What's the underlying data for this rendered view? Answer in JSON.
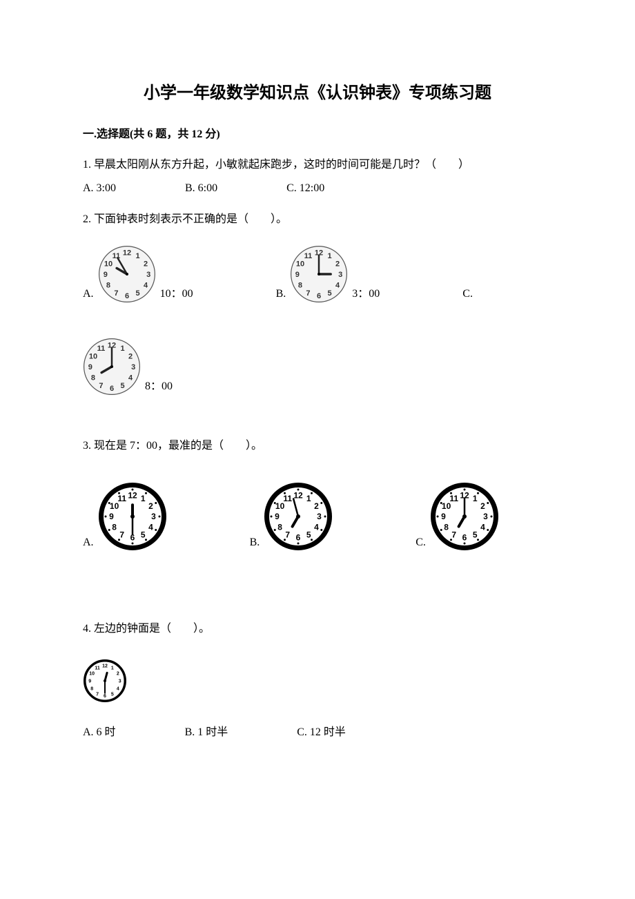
{
  "title": "小学一年级数学知识点《认识钟表》专项练习题",
  "section1": {
    "heading": "一.选择题(共 6 题，共 12 分)"
  },
  "q1": {
    "text": "1. 早晨太阳刚从东方升起，小敏就起床跑步，这时的时间可能是几时？（　　）",
    "opts": {
      "A": "A. 3:00",
      "B": "B. 6:00",
      "C": "C. 12:00"
    }
  },
  "q2": {
    "text": "2. 下面钟表时刻表示不正确的是（　　）。",
    "A": {
      "letter": "A.",
      "label": "10：00",
      "clock": {
        "size": 84,
        "style": "simple",
        "hour": 10,
        "minute": 0,
        "minuteTo": 11
      }
    },
    "B": {
      "letter": "B.",
      "label": "3：00",
      "clock": {
        "size": 84,
        "style": "simple",
        "hour": 3,
        "minute": 0
      }
    },
    "C": {
      "letter": "C.",
      "label": "8：00",
      "clock": {
        "size": 84,
        "style": "simple",
        "hour": 8,
        "minute": 0
      }
    }
  },
  "q3": {
    "text": "3. 现在是 7：00，最准的是（　　）。",
    "A": {
      "letter": "A.",
      "clock": {
        "size": 100,
        "style": "bold",
        "hour": 6,
        "minute": 30,
        "hourTo": 12
      }
    },
    "B": {
      "letter": "B.",
      "clock": {
        "size": 100,
        "style": "bold",
        "hour": 7,
        "minute": 0,
        "minuteTo": 11.5
      }
    },
    "C": {
      "letter": "C.",
      "clock": {
        "size": 100,
        "style": "bold",
        "hour": 7,
        "minute": 0
      }
    }
  },
  "q4": {
    "text": "4. 左边的钟面是（　　）。",
    "clock": {
      "size": 64,
      "style": "tiny",
      "hour": 12,
      "minute": 30
    },
    "opts": {
      "A": "A. 6 时",
      "B": "B. 1 时半",
      "C": "C. 12 时半"
    }
  },
  "clockStyles": {
    "simple": {
      "outer_stroke": "#555555",
      "outer_stroke_w": 1.2,
      "face_fill": "#f4f4f4",
      "num_font": 11,
      "num_color": "#333333",
      "num_bold": true,
      "hour_hand_w": 3.5,
      "hour_hand_color": "#222222",
      "min_hand_w": 2.5,
      "min_hand_color": "#222222",
      "hub_r": 2
    },
    "bold": {
      "outer_stroke": "#000000",
      "outer_stroke_w": 7,
      "face_fill": "#ffffff",
      "num_font": 12,
      "num_color": "#000000",
      "num_bold": true,
      "hour_hand_w": 4,
      "hour_hand_color": "#000000",
      "min_hand_w": 2.5,
      "min_hand_color": "#000000",
      "hub_r": 3
    },
    "tiny": {
      "outer_stroke": "#000000",
      "outer_stroke_w": 3.5,
      "face_fill": "#ffffff",
      "num_font": 7,
      "num_color": "#000000",
      "num_bold": true,
      "hour_hand_w": 3,
      "hour_hand_color": "#000000",
      "min_hand_w": 2,
      "min_hand_color": "#000000",
      "hub_r": 2
    }
  }
}
